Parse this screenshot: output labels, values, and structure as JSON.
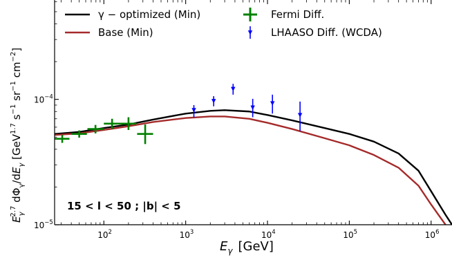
{
  "chart_data": {
    "type": "line",
    "xlabel": "E",
    "xlabel_sub": "γ",
    "xlabel_unit": "[GeV]",
    "ylabel": "E γ 2.7 dΦγ/dEγ [GeV^1.7 s^-1 sr^-1 cm^-2]",
    "ylabel_parts": {
      "e": "E",
      "sub": "γ",
      "sup": "2.7",
      "d1": " dΦ",
      "d1sub": "γ",
      "slash": "/d",
      "e2": "E",
      "e2sub": "γ",
      "unit_open": "  [GeV",
      "u1": "1.7",
      "s": " s",
      "s_exp": "−1",
      "sr": " sr",
      "sr_exp": "−1",
      "cm": " cm",
      "cm_exp": "−2",
      "unit_close": "]"
    },
    "x_scale": "log",
    "y_scale": "log",
    "xlim": [
      25,
      1800000
    ],
    "ylim": [
      1e-05,
      0.00062
    ],
    "x_ticks": [
      {
        "value": 100,
        "base": "10",
        "exp": "2"
      },
      {
        "value": 1000,
        "base": "10",
        "exp": "3"
      },
      {
        "value": 10000,
        "base": "10",
        "exp": "4"
      },
      {
        "value": 100000,
        "base": "10",
        "exp": "5"
      },
      {
        "value": 1000000,
        "base": "10",
        "exp": "6"
      }
    ],
    "y_ticks": [
      {
        "value": 1e-05,
        "base": "10",
        "exp": "−5"
      },
      {
        "value": 0.0001,
        "base": "10",
        "exp": "−4"
      }
    ],
    "annotation": "15 < l < 50 ; |b| < 5",
    "legend": {
      "placement": "top",
      "entries": [
        {
          "label": "γ − optimized (Min)",
          "marker": "line",
          "color": "#000000"
        },
        {
          "label": "Base (Min)",
          "marker": "line",
          "color": "#a52a2a"
        },
        {
          "label": "Fermi Diff.",
          "marker": "cross",
          "color": "#008000"
        },
        {
          "label": "LHAASO Diff. (WCDA)",
          "marker": "triangle",
          "color": "#0000ff"
        }
      ]
    },
    "series": [
      {
        "name": "γ − optimized (Min)",
        "kind": "line",
        "color": "#000000",
        "x": [
          25,
          50,
          100,
          200,
          400,
          1000,
          2000,
          3000,
          6000,
          10000,
          20000,
          50000,
          100000,
          200000,
          400000,
          700000,
          1000000,
          1500000,
          1800000
        ],
        "y": [
          5.3e-05,
          5.5e-05,
          5.9e-05,
          6.3e-05,
          6.9e-05,
          7.7e-05,
          8.1e-05,
          8.2e-05,
          8e-05,
          7.5e-05,
          6.8e-05,
          5.9e-05,
          5.3e-05,
          4.6e-05,
          3.7e-05,
          2.7e-05,
          1.85e-05,
          1.2e-05,
          1e-05
        ]
      },
      {
        "name": "Base (Min)",
        "kind": "line",
        "color": "#a52a2a",
        "x": [
          25,
          50,
          100,
          200,
          400,
          1000,
          2000,
          3000,
          6000,
          10000,
          20000,
          50000,
          100000,
          200000,
          400000,
          700000,
          1000000,
          1500000
        ],
        "y": [
          5.2e-05,
          5.35e-05,
          5.7e-05,
          6.1e-05,
          6.6e-05,
          7.1e-05,
          7.3e-05,
          7.3e-05,
          7e-05,
          6.5e-05,
          5.8e-05,
          4.9e-05,
          4.3e-05,
          3.6e-05,
          2.85e-05,
          2.05e-05,
          1.45e-05,
          1e-05
        ]
      },
      {
        "name": "Fermi Diff.",
        "kind": "cross",
        "color": "#008000",
        "points": [
          {
            "x": 31,
            "y": 4.85e-05,
            "xlo": 25,
            "xhi": 38,
            "ylo": 4.5e-05,
            "yhi": 5.2e-05
          },
          {
            "x": 50,
            "y": 5.3e-05,
            "xlo": 40,
            "xhi": 62,
            "ylo": 4.95e-05,
            "yhi": 5.65e-05
          },
          {
            "x": 79,
            "y": 5.8e-05,
            "xlo": 63,
            "xhi": 100,
            "ylo": 5.35e-05,
            "yhi": 6.25e-05
          },
          {
            "x": 126,
            "y": 6.4e-05,
            "xlo": 100,
            "xhi": 160,
            "ylo": 5.8e-05,
            "yhi": 7e-05
          },
          {
            "x": 200,
            "y": 6.4e-05,
            "xlo": 160,
            "xhi": 250,
            "ylo": 5.7e-05,
            "yhi": 7.2e-05
          },
          {
            "x": 320,
            "y": 5.3e-05,
            "xlo": 255,
            "xhi": 400,
            "ylo": 4.4e-05,
            "yhi": 6.3e-05
          }
        ]
      },
      {
        "name": "LHAASO Diff. (WCDA)",
        "kind": "triangle",
        "color": "#0000ff",
        "points": [
          {
            "x": 1260,
            "y": 8.2e-05,
            "ylo": 7.2e-05,
            "yhi": 9e-05
          },
          {
            "x": 2200,
            "y": 9.7e-05,
            "ylo": 8.8e-05,
            "yhi": 0.000106
          },
          {
            "x": 3800,
            "y": 0.000121,
            "ylo": 0.000109,
            "yhi": 0.000133
          },
          {
            "x": 6600,
            "y": 8.6e-05,
            "ylo": 7.2e-05,
            "yhi": 0.000101
          },
          {
            "x": 11500,
            "y": 9.3e-05,
            "ylo": 7.7e-05,
            "yhi": 0.000109
          },
          {
            "x": 25000,
            "y": 7.5e-05,
            "ylo": 5.6e-05,
            "yhi": 9.6e-05
          }
        ]
      }
    ]
  }
}
